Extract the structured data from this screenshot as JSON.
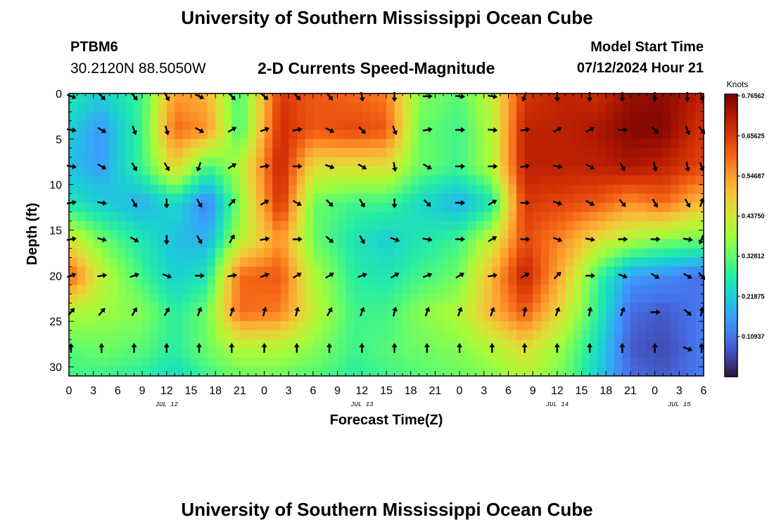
{
  "header": {
    "title": "University of Southern Mississippi Ocean Cube",
    "station": "PTBM6",
    "coords": "30.2120N  88.5050W",
    "subtitle": "2-D Currents Speed-Magnitude",
    "model_start_label": "Model Start Time",
    "model_start_value": "07/12/2024 Hour 21"
  },
  "footer": {
    "title": "University of Southern Mississippi Ocean Cube"
  },
  "chart_data": {
    "type": "heatmap",
    "title": "2-D Currents Speed-Magnitude",
    "xlabel": "Forecast Time(Z)",
    "ylabel": "Depth (ft)",
    "xlim": [
      0,
      78
    ],
    "ylim": [
      31,
      0
    ],
    "x_tick_values": [
      0,
      3,
      6,
      9,
      12,
      15,
      18,
      21,
      24,
      27,
      30,
      33,
      36,
      39,
      42,
      45,
      48,
      51,
      54,
      57,
      60,
      63,
      66,
      69,
      72,
      75,
      78
    ],
    "x_tick_labels": [
      "0",
      "3",
      "6",
      "9",
      "12",
      "15",
      "18",
      "21",
      "0",
      "3",
      "6",
      "9",
      "12",
      "15",
      "18",
      "21",
      "0",
      "3",
      "6",
      "9",
      "12",
      "15",
      "18",
      "21",
      "0",
      "3",
      "6"
    ],
    "y_tick_values": [
      0,
      5,
      10,
      15,
      20,
      25,
      30
    ],
    "y_tick_labels": [
      "0",
      "5",
      "10",
      "15",
      "20",
      "25",
      "30"
    ],
    "date_labels": [
      {
        "label": "JUL 12",
        "x": 12
      },
      {
        "label": "JUL 13",
        "x": 36
      },
      {
        "label": "JUL 14",
        "x": 60
      },
      {
        "label": "JUL 15",
        "x": 75
      }
    ],
    "colorbar": {
      "title": "Knots",
      "min": 0.0,
      "max": 0.77,
      "tick_values": [
        0.10937,
        0.21875,
        0.32812,
        0.4375,
        0.54687,
        0.65625,
        0.76562
      ],
      "tick_labels": [
        "0.10937",
        "0.21875",
        "0.32812",
        "0.43750",
        "0.54687",
        "0.65625",
        "0.76562"
      ],
      "colors": [
        "#30123b",
        "#4145ab",
        "#4675ed",
        "#39a2fc",
        "#1bcfd4",
        "#24eca6",
        "#61fc6c",
        "#a4fc3b",
        "#d1e834",
        "#f3c63a",
        "#fe9b2d",
        "#f36315",
        "#d93806",
        "#b11901",
        "#7a0403"
      ]
    },
    "speed_grid": {
      "columns_hours": [
        0,
        4,
        9,
        13,
        17,
        21,
        26,
        30,
        35,
        39,
        43,
        48,
        52,
        56,
        61,
        65,
        69,
        73,
        78
      ],
      "rows_ft": [
        0,
        4,
        8,
        12,
        16,
        20,
        24,
        28,
        31
      ],
      "values": [
        [
          0.27,
          0.22,
          0.3,
          0.55,
          0.52,
          0.3,
          0.66,
          0.62,
          0.6,
          0.58,
          0.36,
          0.32,
          0.42,
          0.66,
          0.7,
          0.68,
          0.74,
          0.75,
          0.7
        ],
        [
          0.22,
          0.15,
          0.3,
          0.6,
          0.56,
          0.3,
          0.68,
          0.62,
          0.64,
          0.62,
          0.34,
          0.3,
          0.4,
          0.7,
          0.7,
          0.72,
          0.76,
          0.76,
          0.66
        ],
        [
          0.2,
          0.16,
          0.3,
          0.48,
          0.3,
          0.4,
          0.7,
          0.46,
          0.46,
          0.46,
          0.34,
          0.3,
          0.4,
          0.7,
          0.7,
          0.7,
          0.72,
          0.7,
          0.64
        ],
        [
          0.26,
          0.22,
          0.18,
          0.24,
          0.12,
          0.36,
          0.68,
          0.34,
          0.3,
          0.3,
          0.24,
          0.18,
          0.26,
          0.66,
          0.64,
          0.62,
          0.56,
          0.6,
          0.5
        ],
        [
          0.44,
          0.34,
          0.26,
          0.2,
          0.18,
          0.4,
          0.56,
          0.34,
          0.26,
          0.22,
          0.26,
          0.3,
          0.42,
          0.64,
          0.56,
          0.46,
          0.4,
          0.36,
          0.34
        ],
        [
          0.62,
          0.42,
          0.3,
          0.22,
          0.26,
          0.6,
          0.62,
          0.4,
          0.28,
          0.26,
          0.3,
          0.34,
          0.52,
          0.7,
          0.5,
          0.3,
          0.16,
          0.14,
          0.1
        ],
        [
          0.4,
          0.38,
          0.36,
          0.28,
          0.34,
          0.6,
          0.58,
          0.42,
          0.3,
          0.3,
          0.36,
          0.4,
          0.52,
          0.62,
          0.44,
          0.28,
          0.1,
          0.08,
          0.12
        ],
        [
          0.32,
          0.34,
          0.32,
          0.28,
          0.34,
          0.4,
          0.4,
          0.36,
          0.3,
          0.32,
          0.34,
          0.36,
          0.4,
          0.46,
          0.36,
          0.24,
          0.08,
          0.06,
          0.12
        ],
        [
          0.3,
          0.3,
          0.28,
          0.24,
          0.3,
          0.34,
          0.34,
          0.32,
          0.28,
          0.3,
          0.32,
          0.34,
          0.36,
          0.4,
          0.34,
          0.22,
          0.1,
          0.08,
          0.12
        ]
      ]
    },
    "vectors": {
      "hours": [
        0,
        4,
        8,
        12,
        16,
        20,
        24,
        28,
        32,
        36,
        40,
        44,
        48,
        52,
        56,
        60,
        64,
        68,
        72,
        76,
        78
      ],
      "depths_ft": [
        0,
        4,
        8,
        12,
        16,
        20,
        24,
        28
      ],
      "bearings_deg": [
        [
          110,
          135,
          140,
          150,
          115,
          135,
          130,
          135,
          140,
          170,
          180,
          90,
          95,
          100,
          200,
          180,
          180,
          180,
          180,
          180,
          160
        ],
        [
          100,
          120,
          160,
          165,
          120,
          60,
          70,
          80,
          115,
          135,
          160,
          80,
          90,
          95,
          80,
          60,
          60,
          90,
          135,
          160,
          140
        ],
        [
          100,
          120,
          150,
          150,
          200,
          60,
          80,
          90,
          110,
          120,
          170,
          120,
          90,
          90,
          80,
          100,
          120,
          150,
          165,
          170,
          160
        ],
        [
          80,
          100,
          150,
          180,
          150,
          45,
          60,
          120,
          135,
          150,
          180,
          135,
          90,
          60,
          90,
          110,
          120,
          140,
          150,
          150,
          20
        ],
        [
          80,
          105,
          120,
          180,
          150,
          30,
          80,
          90,
          130,
          150,
          110,
          100,
          90,
          60,
          90,
          110,
          100,
          90,
          90,
          100,
          200
        ],
        [
          70,
          80,
          70,
          110,
          90,
          80,
          70,
          60,
          60,
          70,
          60,
          70,
          60,
          80,
          60,
          45,
          90,
          110,
          120,
          120,
          140
        ],
        [
          40,
          40,
          30,
          30,
          20,
          20,
          15,
          15,
          30,
          20,
          15,
          20,
          20,
          20,
          10,
          20,
          10,
          20,
          90,
          130,
          10
        ],
        [
          0,
          0,
          0,
          0,
          0,
          0,
          0,
          0,
          0,
          0,
          0,
          0,
          0,
          0,
          0,
          0,
          0,
          0,
          0,
          110,
          0
        ]
      ]
    }
  }
}
